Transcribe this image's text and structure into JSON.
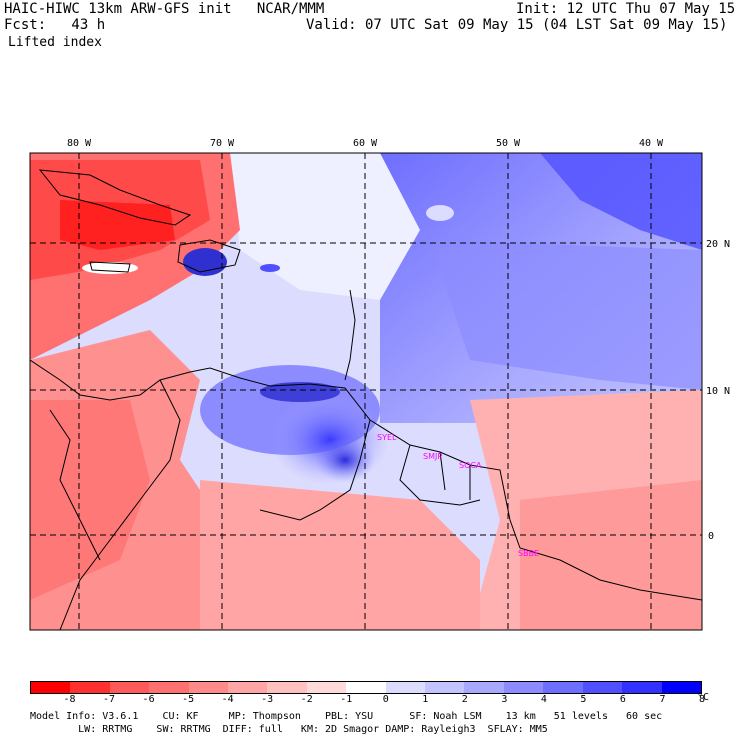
{
  "header": {
    "title": "HAIC-HIWC 13km ARW-GFS init   NCAR/MMM",
    "init": "Init: 12 UTC Thu 07 May 15",
    "fcst": "Fcst:   43 h",
    "valid": "Valid: 07 UTC Sat 09 May 15 (04 LST Sat 09 May 15)",
    "field": "Lifted index"
  },
  "map": {
    "lon_labels": [
      "80 W",
      "70 W",
      "60 W",
      "50 W",
      "40 W"
    ],
    "lat_labels": [
      "20 N",
      "10 N",
      "0"
    ],
    "stations": [
      "SYEL",
      "SMJP",
      "SOCA",
      "SBBE"
    ]
  },
  "colorbar": {
    "colors": [
      "#ff0000",
      "#ff3030",
      "#ff5a5a",
      "#ff7070",
      "#ff8a8a",
      "#ffa5a5",
      "#ffc0c0",
      "#ffdada",
      "#ffffff",
      "#dcdcff",
      "#c3c3ff",
      "#a8a8ff",
      "#8c8cff",
      "#6e6eff",
      "#5050ff",
      "#3232ff",
      "#0000ff"
    ],
    "ticks": [
      "-8",
      "-7",
      "-6",
      "-5",
      "-4",
      "-3",
      "-2",
      "-1",
      "0",
      "1",
      "2",
      "3",
      "4",
      "5",
      "6",
      "7",
      "8"
    ],
    "unit": "°C"
  },
  "footer": {
    "line1": "Model Info: V3.6.1    CU: KF     MP: Thompson    PBL: YSU      SF: Noah LSM    13 km   51 levels   60 sec",
    "line2": "        LW: RRTMG    SW: RRTMG  DIFF: full   KM: 2D Smagor DAMP: Rayleigh3  SFLAY: MM5"
  }
}
